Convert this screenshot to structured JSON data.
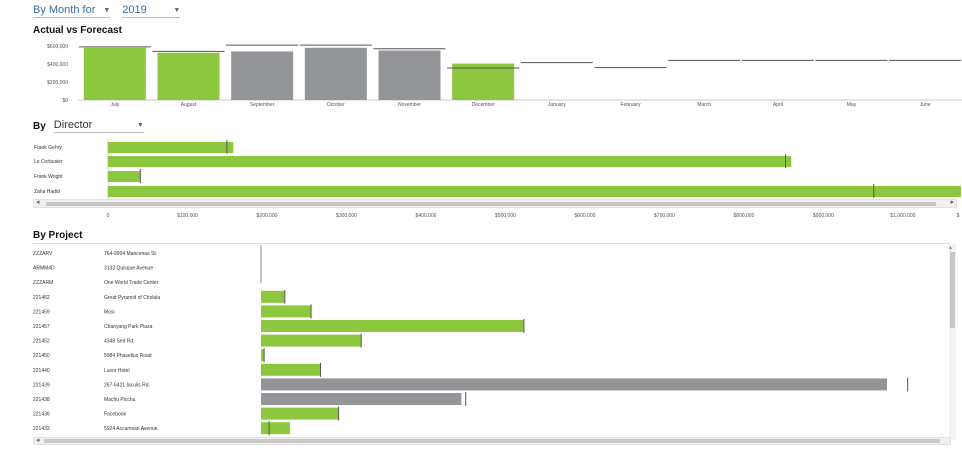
{
  "filters": {
    "period_label": "By Month for",
    "year_value": "2019"
  },
  "forecast": {
    "title": "Actual vs Forecast",
    "y_ticks": [
      "$600,000",
      "$400,000",
      "$200,000",
      "$0"
    ],
    "months": [
      "July",
      "August",
      "September",
      "October",
      "November",
      "December",
      "January",
      "February",
      "March",
      "April",
      "May",
      "June"
    ]
  },
  "director": {
    "by_label": "By",
    "select_value": "Director",
    "x_ticks": [
      "0",
      "$100,000",
      "$200,000",
      "$300,000",
      "$400,000",
      "$500,000",
      "$600,000",
      "$700,000",
      "$800,000",
      "$900,000",
      "$1,000,000",
      "$"
    ]
  },
  "project": {
    "title": "By Project"
  },
  "chart_data": [
    {
      "type": "bar",
      "title": "Actual vs Forecast",
      "categories": [
        "July",
        "August",
        "September",
        "October",
        "November",
        "December",
        "January",
        "February",
        "March",
        "April",
        "May",
        "June"
      ],
      "series": [
        {
          "values": [
            580000,
            525000,
            540000,
            580000,
            550000,
            405000,
            0,
            0,
            0,
            0,
            0,
            0
          ]
        },
        {
          "values": [
            590000,
            540000,
            610000,
            610000,
            570000,
            355000,
            415000,
            360000,
            440000,
            440000,
            440000,
            440000
          ]
        }
      ],
      "bar_status": [
        "green",
        "green",
        "gray",
        "gray",
        "gray",
        "green",
        "none",
        "none",
        "none",
        "none",
        "none",
        "none"
      ],
      "ylim": [
        0,
        600000
      ]
    },
    {
      "type": "bar",
      "orientation": "horizontal",
      "categories": [
        "Frank Gehry",
        "Le Corbusier",
        "Frank Wright",
        "Zaha Hadid"
      ],
      "series": [
        {
          "values": [
            155000,
            845000,
            40000,
            1055000
          ]
        },
        {
          "values": [
            147000,
            838000,
            40000,
            947000
          ]
        }
      ],
      "xlim": [
        0,
        1050000
      ]
    },
    {
      "type": "bar",
      "orientation": "horizontal",
      "title": "By Project",
      "categories": [
        {
          "id": "ZZZARV",
          "name": "764-9904 Maecenas St."
        },
        {
          "id": "ARMM4D",
          "name": "3133 Quisque Avenue"
        },
        {
          "id": "ZZZARM",
          "name": "One World Trade Center"
        },
        {
          "id": "221462",
          "name": "Great Pyramid of Cholula"
        },
        {
          "id": "221459",
          "name": "Mosi"
        },
        {
          "id": "221457",
          "name": "Chaoyang Park Plaza"
        },
        {
          "id": "221452",
          "name": "4348 Sed Rd."
        },
        {
          "id": "221450",
          "name": "5984 Phasellus Road"
        },
        {
          "id": "221440",
          "name": "Luxor Hotel"
        },
        {
          "id": "221439",
          "name": "267-6421 Iaculis Rd."
        },
        {
          "id": "221438",
          "name": "Machu Picchu"
        },
        {
          "id": "221436",
          "name": "Facebook"
        },
        {
          "id": "221433",
          "name": "5924 Accumsan Avenue"
        }
      ],
      "series": [
        {
          "values": [
            0,
            0,
            0,
            0.038,
            0.08,
            0.42,
            0.16,
            0.005,
            0.095,
            1.0,
            0.32,
            0.124,
            0.046
          ]
        },
        {
          "values": [
            0,
            0,
            0,
            0.038,
            0.08,
            0.42,
            0.16,
            0.005,
            0.095,
            1.033,
            0.327,
            0.124,
            0.013
          ]
        }
      ],
      "bar_status": [
        "none",
        "none",
        "none",
        "green",
        "green",
        "green",
        "green",
        "green",
        "green",
        "gray",
        "gray",
        "green",
        "green"
      ]
    }
  ],
  "colors": {
    "green": "#8dc63f",
    "gray": "#939598",
    "axis": "#c8c8c8",
    "marker": "#555555"
  }
}
